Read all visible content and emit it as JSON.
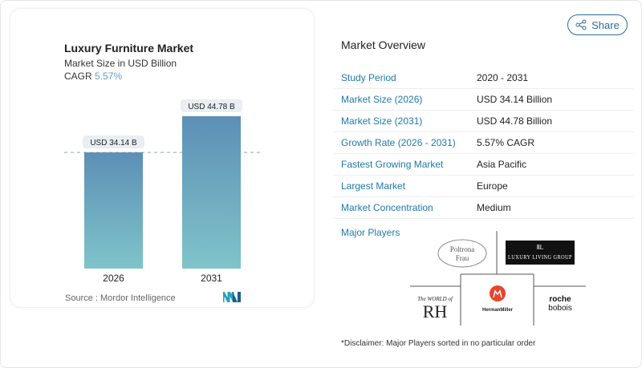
{
  "share_label": "Share",
  "chart_data": {
    "type": "bar",
    "title": "Luxury Furniture Market",
    "subtitle": "Market Size in USD Billion",
    "cagr_label": "CAGR",
    "cagr_value": "5.57%",
    "categories": [
      "2026",
      "2031"
    ],
    "values": [
      34.14,
      44.78
    ],
    "data_labels": [
      "USD 34.14 B",
      "USD 44.78 B"
    ],
    "ylim": [
      0,
      45
    ],
    "colors": {
      "bar_top": "#5d8fb6",
      "bar_bottom": "#7fc4c9"
    },
    "source": "Source :  Mordor Intelligence"
  },
  "overview": {
    "title": "Market Overview",
    "rows": [
      {
        "label": "Study Period",
        "value": "2020 - 2031"
      },
      {
        "label": "Market Size (2026)",
        "value": "USD 34.14 Billion"
      },
      {
        "label": "Market Size (2031)",
        "value": "USD 44.78 Billion"
      },
      {
        "label": "Growth Rate (2026 - 2031)",
        "value": "5.57% CAGR"
      },
      {
        "label": "Fastest Growing Market",
        "value": "Asia Pacific"
      },
      {
        "label": "Largest Market",
        "value": "Europe"
      },
      {
        "label": "Market Concentration",
        "value": "Medium"
      }
    ],
    "major_players_label": "Major Players",
    "players": [
      "Poltrona Frau",
      "Luxury Living Group",
      "The World of RH",
      "Herman Miller",
      "roche bobois"
    ],
    "disclaimer": "*Disclaimer: Major Players sorted in no particular order"
  }
}
